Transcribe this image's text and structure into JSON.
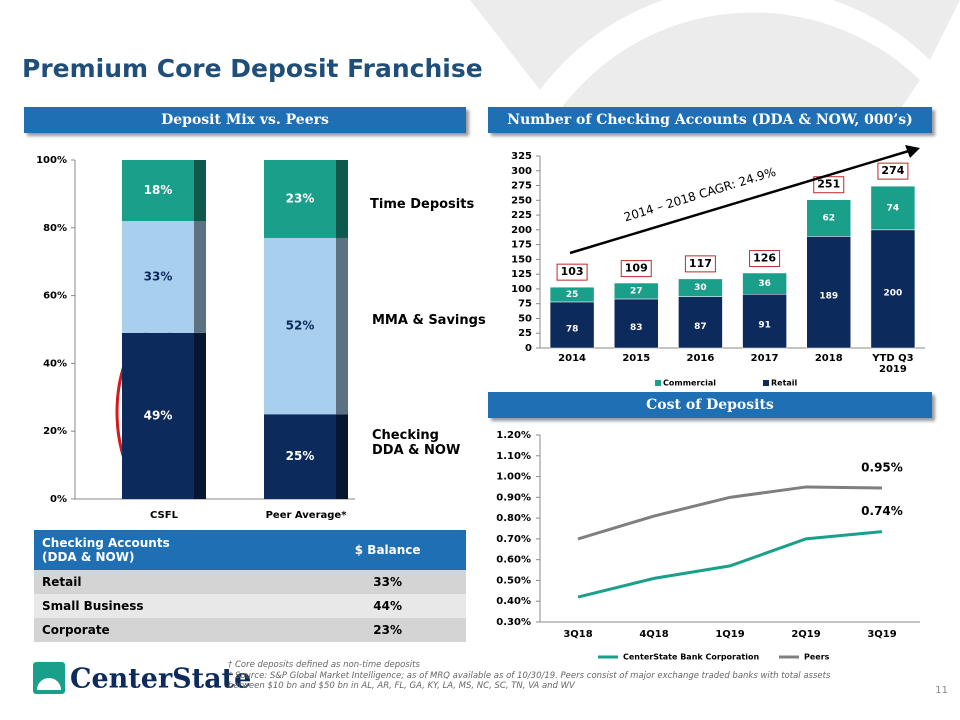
{
  "title": "Premium Core Deposit Franchise",
  "chart_data": [
    {
      "type": "stacked-bar",
      "title": "Deposit Mix vs. Peers",
      "categories": [
        "CSFL",
        "Peer Average*"
      ],
      "series": [
        {
          "name": "Checking\nDDA & NOW",
          "color": "#0c2a5b",
          "values": [
            49,
            25
          ],
          "value_labels": [
            "49%",
            "25%"
          ]
        },
        {
          "name": "MMA & Savings",
          "color": "#a8d0ee",
          "values": [
            33,
            52
          ],
          "value_labels": [
            "33%",
            "52%"
          ]
        },
        {
          "name": "Time Deposits",
          "color": "#1aa08a",
          "values": [
            18,
            23
          ],
          "value_labels": [
            "18%",
            "23%"
          ]
        }
      ],
      "ylim": [
        0,
        100
      ],
      "yticks": [
        {
          "value": 0,
          "label": "0%"
        },
        {
          "value": 20,
          "label": "20%"
        },
        {
          "value": 40,
          "label": "40%"
        },
        {
          "value": 60,
          "label": "60%"
        },
        {
          "value": 80,
          "label": "80%"
        },
        {
          "value": 100,
          "label": "100%"
        }
      ]
    },
    {
      "type": "stacked-bar",
      "title": "Number of Checking Accounts (DDA & NOW, 000’s)",
      "categories": [
        "2014",
        "2015",
        "2016",
        "2017",
        "2018",
        "YTD Q3\n2019"
      ],
      "series": [
        {
          "name": "Retail",
          "color": "#0c2a5b",
          "values": [
            78,
            83,
            87,
            91,
            189,
            200
          ]
        },
        {
          "name": "Commercial",
          "color": "#1aa08a",
          "values": [
            25,
            27,
            30,
            36,
            62,
            74
          ]
        }
      ],
      "totals": [
        103,
        109,
        117,
        126,
        251,
        274
      ],
      "annotation": "2014 – 2018 CAGR: 24.9%",
      "ylim": [
        0,
        325
      ],
      "yticks": [
        0,
        25,
        50,
        75,
        100,
        125,
        150,
        175,
        200,
        225,
        250,
        275,
        300,
        325
      ]
    },
    {
      "type": "line",
      "title": "Cost of Deposits",
      "categories": [
        "3Q18",
        "4Q18",
        "1Q19",
        "2Q19",
        "3Q19"
      ],
      "series": [
        {
          "name": "CenterState Bank Corporation",
          "color": "#1aa08a",
          "values": [
            0.42,
            0.51,
            0.57,
            0.7,
            0.735
          ],
          "value_labels": [
            null,
            null,
            null,
            null,
            "0.74%"
          ]
        },
        {
          "name": "Peers",
          "color": "#7f7f7f",
          "values": [
            0.7,
            0.81,
            0.9,
            0.95,
            0.945
          ],
          "value_labels": [
            null,
            null,
            null,
            null,
            "0.95%"
          ]
        }
      ],
      "ylim": [
        0.3,
        1.2
      ],
      "yticks": [
        {
          "value": 0.3,
          "label": "0.30%"
        },
        {
          "value": 0.4,
          "label": "0.40%"
        },
        {
          "value": 0.5,
          "label": "0.50%"
        },
        {
          "value": 0.6,
          "label": "0.60%"
        },
        {
          "value": 0.7,
          "label": "0.70%"
        },
        {
          "value": 0.8,
          "label": "0.80%"
        },
        {
          "value": 0.9,
          "label": "0.90%"
        },
        {
          "value": 1.0,
          "label": "1.00%"
        },
        {
          "value": 1.1,
          "label": "1.10%"
        },
        {
          "value": 1.2,
          "label": "1.20%"
        }
      ]
    }
  ],
  "table": {
    "header": [
      "Checking Accounts\n(DDA & NOW)",
      "$ Balance"
    ],
    "rows": [
      [
        "Retail",
        "33%"
      ],
      [
        "Small Business",
        "44%"
      ],
      [
        "Corporate",
        "23%"
      ]
    ]
  },
  "footnotes": [
    "† Core deposits defined as non-time deposits",
    "*  Source:   S&P Global Market Intelligence; as of MRQ available as of 10/30/19. Peers consist of major exchange traded banks with total assets\n    between $10 bn and $50 bn in AL, AR, FL, GA, KY, LA, MS, NC, SC, TN, VA and WV"
  ],
  "logo": "CenterState",
  "page_number": "11"
}
